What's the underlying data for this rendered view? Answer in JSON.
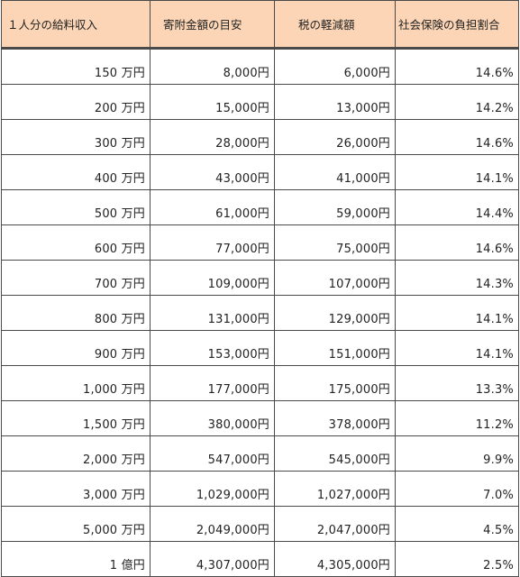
{
  "headers": [
    "１人分の給料収入",
    "寄附金額の目安",
    "税の軽減額",
    "社会保険の負担割合"
  ],
  "rows": [
    [
      "150 万円",
      "8,000円",
      "6,000円",
      "14.6%"
    ],
    [
      "200 万円",
      "15,000円",
      "13,000円",
      "14.2%"
    ],
    [
      "300 万円",
      "28,000円",
      "26,000円",
      "14.6%"
    ],
    [
      "400 万円",
      "43,000円",
      "41,000円",
      "14.1%"
    ],
    [
      "500 万円",
      "61,000円",
      "59,000円",
      "14.4%"
    ],
    [
      "600 万円",
      "77,000円",
      "75,000円",
      "14.6%"
    ],
    [
      "700 万円",
      "109,000円",
      "107,000円",
      "14.3%"
    ],
    [
      "800 万円",
      "131,000円",
      "129,000円",
      "14.1%"
    ],
    [
      "900 万円",
      "153,000円",
      "151,000円",
      "14.1%"
    ],
    [
      "1,000 万円",
      "177,000円",
      "175,000円",
      "13.3%"
    ],
    [
      "1,500 万円",
      "380,000円",
      "378,000円",
      "11.2%"
    ],
    [
      "2,000 万円",
      "547,000円",
      "545,000円",
      "9.9%"
    ],
    [
      "3,000 万円",
      "1,029,000円",
      "1,027,000円",
      "7.0%"
    ],
    [
      "5,000 万円",
      "2,049,000円",
      "2,047,000円",
      "4.5%"
    ],
    [
      "1 億円",
      "4,307,000円",
      "4,305,000円",
      "2.5%"
    ]
  ]
}
